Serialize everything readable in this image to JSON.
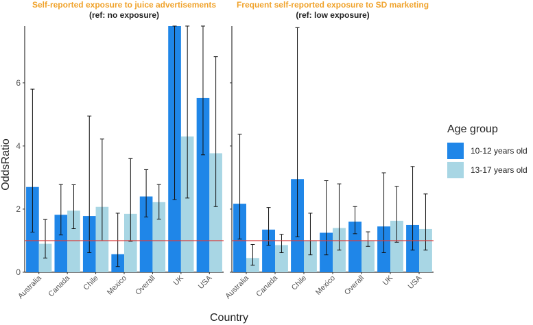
{
  "chart_data": {
    "type": "bar",
    "y_axis_label": "OddsRatio",
    "x_axis_label": "Country",
    "y_ticks": [
      0,
      2,
      4,
      6
    ],
    "ylim": [
      0,
      7.8
    ],
    "reference_line": 1,
    "categories": [
      "Australia",
      "Canada",
      "Chile",
      "Mexico",
      "Overall",
      "UK",
      "USA"
    ],
    "colors": {
      "series1": "#1f86e8",
      "series2": "#a8d6e4",
      "refline": "#d93c3c",
      "axis": "#333333",
      "title": "#f0a22a",
      "subtitle": "#222222"
    },
    "legend": {
      "title": "Age group",
      "items": [
        "10-12 years old",
        "13-17 years old"
      ]
    },
    "panels": [
      {
        "title": "Self-reported exposure to juice advertisements",
        "subtitle": "(ref: no exposure)",
        "series": [
          {
            "name": "10-12 years old",
            "values": [
              2.7,
              1.82,
              1.78,
              0.57,
              2.4,
              7.8,
              5.52
            ],
            "lower": [
              1.27,
              1.18,
              0.62,
              0.18,
              1.75,
              2.3,
              3.72
            ],
            "upper": [
              5.8,
              2.78,
              4.95,
              1.87,
              3.25,
              7.8,
              7.8
            ]
          },
          {
            "name": "13-17 years old",
            "values": [
              0.9,
              1.95,
              2.07,
              1.85,
              2.22,
              4.3,
              3.77
            ],
            "lower": [
              0.45,
              1.38,
              1.0,
              0.98,
              1.68,
              2.35,
              2.08
            ],
            "upper": [
              1.67,
              2.77,
              4.22,
              3.6,
              2.78,
              7.8,
              6.83
            ]
          }
        ]
      },
      {
        "title": "Frequent self-reported exposure to SD marketing",
        "subtitle": "(ref: low exposure)",
        "series": [
          {
            "name": "10-12 years old",
            "values": [
              2.17,
              1.35,
              2.95,
              1.25,
              1.6,
              1.45,
              1.5
            ],
            "lower": [
              1.05,
              0.85,
              1.12,
              0.55,
              1.22,
              0.62,
              0.7
            ],
            "upper": [
              4.37,
              2.05,
              7.75,
              2.9,
              2.08,
              3.15,
              3.35
            ]
          },
          {
            "name": "13-17 years old",
            "values": [
              0.45,
              0.86,
              1.0,
              1.4,
              1.0,
              1.63,
              1.37
            ],
            "lower": [
              0.22,
              0.62,
              0.55,
              0.7,
              0.82,
              0.95,
              0.7
            ],
            "upper": [
              0.88,
              1.2,
              1.87,
              2.8,
              1.28,
              2.72,
              2.48
            ]
          }
        ]
      }
    ]
  }
}
